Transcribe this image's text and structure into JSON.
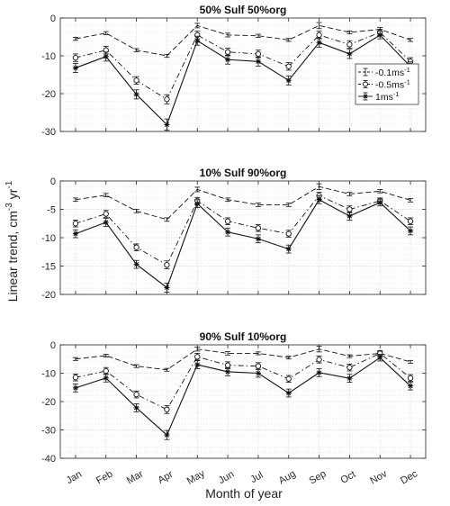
{
  "figure": {
    "ylabel_main": "Linear trend, cm",
    "ylabel_sup": "-3",
    "ylabel_mid": " yr",
    "ylabel_sup2": "-1",
    "xlabel": "Month of year"
  },
  "chart_data": [
    {
      "type": "line",
      "title": "50% Sulf 50%org",
      "categories": [
        "Jan",
        "Feb",
        "Mar",
        "Apr",
        "May",
        "Jun",
        "Jul",
        "Aug",
        "Sep",
        "Oct",
        "Nov",
        "Dec"
      ],
      "ylim": [
        -30,
        0
      ],
      "yticks": [
        0,
        -10,
        -20,
        -30
      ],
      "grid": true,
      "legend": {
        "position": "right",
        "entries": [
          {
            "base": "-0.1ms",
            "sup": "-1"
          },
          {
            "base": "-0.5ms",
            "sup": "-1"
          },
          {
            "base": "1ms",
            "sup": "-1"
          }
        ]
      },
      "series": [
        {
          "values": [
            -5.5,
            -4.0,
            -8.5,
            -10.0,
            -2.0,
            -4.5,
            -4.7,
            -5.8,
            -2.0,
            -3.8,
            -3.0,
            -5.8
          ],
          "err": [
            0.4,
            0.4,
            0.4,
            0.4,
            0.6,
            0.5,
            0.4,
            0.4,
            0.8,
            0.4,
            0.5,
            0.4
          ],
          "style": "dashed",
          "marker": "none"
        },
        {
          "values": [
            -10.5,
            -8.5,
            -16.5,
            -21.5,
            -4.5,
            -9.0,
            -9.5,
            -12.8,
            -4.5,
            -7.0,
            -3.8,
            -11.5
          ],
          "err": [
            1.0,
            1.0,
            1.0,
            1.2,
            1.0,
            1.0,
            1.0,
            1.0,
            1.0,
            1.0,
            0.8,
            1.0
          ],
          "style": "dashdot",
          "marker": "circle"
        },
        {
          "values": [
            -13.2,
            -10.2,
            -20.2,
            -28.2,
            -6.0,
            -11.0,
            -11.5,
            -16.5,
            -6.5,
            -9.5,
            -4.5,
            -12.8
          ],
          "err": [
            1.2,
            1.2,
            1.2,
            1.5,
            1.2,
            1.2,
            1.2,
            1.2,
            1.2,
            1.2,
            1.0,
            1.2
          ],
          "style": "solid",
          "marker": "star"
        }
      ]
    },
    {
      "type": "line",
      "title": "10% Sulf 90%org",
      "categories": [
        "Jan",
        "Feb",
        "Mar",
        "Apr",
        "May",
        "Jun",
        "Jul",
        "Aug",
        "Sep",
        "Oct",
        "Nov",
        "Dec"
      ],
      "ylim": [
        -20,
        0
      ],
      "yticks": [
        0,
        -5,
        -10,
        -15,
        -20
      ],
      "grid": true,
      "series": [
        {
          "values": [
            -3.3,
            -2.5,
            -5.3,
            -6.8,
            -1.5,
            -3.3,
            -4.2,
            -4.2,
            -1.0,
            -2.3,
            -1.8,
            -3.4
          ],
          "err": [
            0.3,
            0.3,
            0.3,
            0.3,
            0.4,
            0.3,
            0.3,
            0.3,
            0.5,
            0.3,
            0.3,
            0.3
          ],
          "style": "dashed",
          "marker": "none"
        },
        {
          "values": [
            -7.5,
            -5.8,
            -11.7,
            -14.8,
            -3.5,
            -7.1,
            -8.3,
            -9.3,
            -2.6,
            -5.0,
            -3.5,
            -7.1
          ],
          "err": [
            0.6,
            0.6,
            0.6,
            0.7,
            0.6,
            0.6,
            0.6,
            0.6,
            0.6,
            0.6,
            0.5,
            0.6
          ],
          "style": "dashdot",
          "marker": "circle"
        },
        {
          "values": [
            -9.3,
            -7.3,
            -14.7,
            -18.8,
            -4.0,
            -9.0,
            -10.2,
            -12.0,
            -3.3,
            -6.2,
            -3.8,
            -8.8
          ],
          "err": [
            0.7,
            0.7,
            0.7,
            0.8,
            0.7,
            0.7,
            0.7,
            0.7,
            0.7,
            0.7,
            0.6,
            0.7
          ],
          "style": "solid",
          "marker": "star"
        }
      ]
    },
    {
      "type": "line",
      "title": "90% Sulf 10%org",
      "categories": [
        "Jan",
        "Feb",
        "Mar",
        "Apr",
        "May",
        "Jun",
        "Jul",
        "Aug",
        "Sep",
        "Oct",
        "Nov",
        "Dec"
      ],
      "ylim": [
        -40,
        0
      ],
      "yticks": [
        0,
        -10,
        -20,
        -30,
        -40
      ],
      "grid": true,
      "series": [
        {
          "values": [
            -5.0,
            -3.8,
            -7.5,
            -8.8,
            -1.5,
            -3.0,
            -3.0,
            -4.5,
            -1.5,
            -4.0,
            -3.0,
            -6.0
          ],
          "err": [
            0.5,
            0.5,
            0.5,
            0.5,
            0.7,
            0.6,
            0.5,
            0.5,
            1.0,
            0.5,
            0.6,
            0.5
          ],
          "style": "dashed",
          "marker": "none"
        },
        {
          "values": [
            -11.5,
            -9.2,
            -17.5,
            -22.8,
            -4.2,
            -7.2,
            -7.5,
            -12.0,
            -5.2,
            -8.0,
            -3.0,
            -11.7
          ],
          "err": [
            1.2,
            1.2,
            1.2,
            1.4,
            1.2,
            1.2,
            1.2,
            1.2,
            1.2,
            1.2,
            1.0,
            1.2
          ],
          "style": "dashdot",
          "marker": "circle"
        },
        {
          "values": [
            -15.2,
            -11.7,
            -22.2,
            -31.8,
            -7.0,
            -9.5,
            -10.0,
            -17.0,
            -9.8,
            -11.8,
            -4.5,
            -14.5
          ],
          "err": [
            1.4,
            1.4,
            1.4,
            1.6,
            1.4,
            1.4,
            1.4,
            1.4,
            1.4,
            1.4,
            1.2,
            1.4
          ],
          "style": "solid",
          "marker": "star"
        }
      ]
    }
  ]
}
